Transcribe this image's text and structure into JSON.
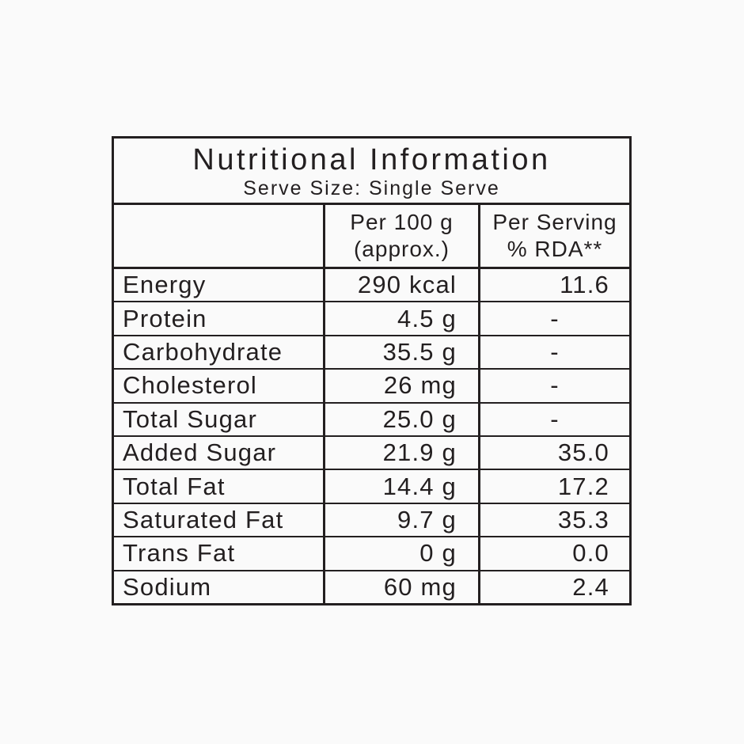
{
  "colors": {
    "background": "#fafafa",
    "text": "#231f20",
    "border": "#231f20"
  },
  "label": {
    "title": "Nutritional Information",
    "subtitle": "Serve Size: Single Serve",
    "columns": {
      "col2_line1": "Per 100 g",
      "col2_line2": "(approx.)",
      "col3_line1": "Per Serving",
      "col3_line2": "% RDA**"
    },
    "rows": [
      {
        "label": "Energy",
        "per_100g": "290 kcal",
        "per_serving": "11.6"
      },
      {
        "label": "Protein",
        "per_100g": "4.5 g",
        "per_serving": "-"
      },
      {
        "label": "Carbohydrate",
        "per_100g": "35.5 g",
        "per_serving": "-"
      },
      {
        "label": "Cholesterol",
        "per_100g": "26 mg",
        "per_serving": "-"
      },
      {
        "label": "Total Sugar",
        "per_100g": "25.0 g",
        "per_serving": "-"
      },
      {
        "label": "Added Sugar",
        "per_100g": "21.9 g",
        "per_serving": "35.0"
      },
      {
        "label": "Total Fat",
        "per_100g": "14.4 g",
        "per_serving": "17.2"
      },
      {
        "label": "Saturated Fat",
        "per_100g": "9.7 g",
        "per_serving": "35.3"
      },
      {
        "label": "Trans Fat",
        "per_100g": "0 g",
        "per_serving": "0.0"
      },
      {
        "label": "Sodium",
        "per_100g": "60 mg",
        "per_serving": "2.4"
      }
    ]
  }
}
